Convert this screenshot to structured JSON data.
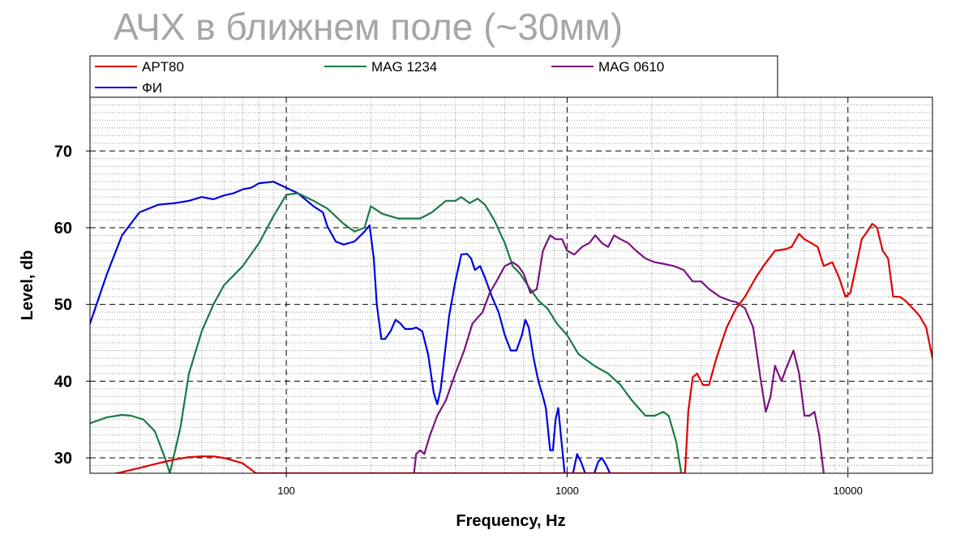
{
  "chart_data": {
    "type": "line",
    "title": "АЧХ в ближнем поле (~30мм)",
    "xlabel": "Frequency, Hz",
    "ylabel": "Level, db",
    "x_scale": "log",
    "xlim": [
      20,
      20000
    ],
    "ylim": [
      28,
      77
    ],
    "x_ticks": [
      100,
      1000,
      10000
    ],
    "x_tick_labels": [
      "100",
      "1000",
      "10000"
    ],
    "y_ticks": [
      30,
      40,
      50,
      60,
      70
    ],
    "y_tick_labels": [
      "30",
      "40",
      "50",
      "60",
      "70"
    ],
    "grid": true,
    "legend_position": "top",
    "series": [
      {
        "name": "ФИ",
        "color": "#0000e0",
        "points": [
          [
            20,
            47.5
          ],
          [
            23,
            54
          ],
          [
            26,
            59
          ],
          [
            30,
            62
          ],
          [
            35,
            63
          ],
          [
            40,
            63.2
          ],
          [
            45,
            63.5
          ],
          [
            50,
            64
          ],
          [
            55,
            63.7
          ],
          [
            60,
            64.2
          ],
          [
            65,
            64.5
          ],
          [
            70,
            65
          ],
          [
            75,
            65.2
          ],
          [
            80,
            65.8
          ],
          [
            90,
            66
          ],
          [
            100,
            65.2
          ],
          [
            110,
            64.5
          ],
          [
            125,
            62.8
          ],
          [
            135,
            62
          ],
          [
            140,
            60.2
          ],
          [
            150,
            58.2
          ],
          [
            160,
            57.8
          ],
          [
            175,
            58.2
          ],
          [
            190,
            59.5
          ],
          [
            198,
            60.3
          ],
          [
            205,
            56
          ],
          [
            210,
            50
          ],
          [
            218,
            45.5
          ],
          [
            225,
            45.5
          ],
          [
            235,
            46.5
          ],
          [
            245,
            48
          ],
          [
            255,
            47.5
          ],
          [
            265,
            46.8
          ],
          [
            280,
            46.8
          ],
          [
            290,
            47
          ],
          [
            305,
            46.5
          ],
          [
            320,
            43.5
          ],
          [
            335,
            38.5
          ],
          [
            345,
            37
          ],
          [
            355,
            39
          ],
          [
            380,
            48.5
          ],
          [
            400,
            53
          ],
          [
            420,
            56.5
          ],
          [
            440,
            56.6
          ],
          [
            455,
            56
          ],
          [
            470,
            54.5
          ],
          [
            490,
            55
          ],
          [
            510,
            53.5
          ],
          [
            540,
            51
          ],
          [
            570,
            49
          ],
          [
            600,
            46
          ],
          [
            630,
            44
          ],
          [
            660,
            44
          ],
          [
            690,
            46
          ],
          [
            710,
            48
          ],
          [
            730,
            47
          ],
          [
            760,
            43
          ],
          [
            790,
            40
          ],
          [
            820,
            38
          ],
          [
            840,
            36.5
          ],
          [
            870,
            31
          ],
          [
            890,
            31
          ],
          [
            910,
            35
          ],
          [
            930,
            36.5
          ],
          [
            950,
            33
          ],
          [
            980,
            28
          ],
          [
            1050,
            28
          ],
          [
            1085,
            30.5
          ],
          [
            1120,
            29.5
          ],
          [
            1160,
            28
          ],
          [
            1250,
            28
          ],
          [
            1290,
            29.5
          ],
          [
            1330,
            30
          ],
          [
            1380,
            29
          ],
          [
            1420,
            28
          ]
        ]
      },
      {
        "name": "MAG 1234",
        "color": "#1a7a46",
        "points": [
          [
            20,
            34.5
          ],
          [
            23,
            35.3
          ],
          [
            26,
            35.6
          ],
          [
            28,
            35.5
          ],
          [
            31,
            35
          ],
          [
            34,
            33.5
          ],
          [
            37,
            30
          ],
          [
            38.5,
            28
          ],
          [
            42,
            34
          ],
          [
            45,
            41
          ],
          [
            50,
            46.5
          ],
          [
            55,
            50
          ],
          [
            60,
            52.5
          ],
          [
            70,
            55
          ],
          [
            80,
            58
          ],
          [
            90,
            61.5
          ],
          [
            100,
            64.3
          ],
          [
            110,
            64.5
          ],
          [
            125,
            63.5
          ],
          [
            140,
            62.5
          ],
          [
            160,
            60.5
          ],
          [
            175,
            59.5
          ],
          [
            190,
            60
          ],
          [
            200,
            62.8
          ],
          [
            220,
            61.8
          ],
          [
            250,
            61.2
          ],
          [
            275,
            61.2
          ],
          [
            300,
            61.2
          ],
          [
            330,
            62
          ],
          [
            370,
            63.5
          ],
          [
            400,
            63.5
          ],
          [
            420,
            64
          ],
          [
            450,
            63.2
          ],
          [
            480,
            63.8
          ],
          [
            510,
            63
          ],
          [
            550,
            61
          ],
          [
            600,
            58
          ],
          [
            640,
            55
          ],
          [
            680,
            54
          ],
          [
            730,
            52.3
          ],
          [
            790,
            50.5
          ],
          [
            850,
            49.5
          ],
          [
            920,
            47.5
          ],
          [
            1000,
            46
          ],
          [
            1100,
            43.5
          ],
          [
            1250,
            42
          ],
          [
            1400,
            41
          ],
          [
            1550,
            39.5
          ],
          [
            1700,
            37.5
          ],
          [
            1900,
            35.5
          ],
          [
            2050,
            35.5
          ],
          [
            2200,
            36
          ],
          [
            2300,
            35.5
          ],
          [
            2450,
            32
          ],
          [
            2550,
            28
          ]
        ]
      },
      {
        "name": "MAG 0610",
        "color": "#7a1480",
        "points": [
          [
            285,
            28
          ],
          [
            290,
            30.5
          ],
          [
            300,
            31
          ],
          [
            310,
            30.5
          ],
          [
            325,
            33
          ],
          [
            345,
            35.5
          ],
          [
            370,
            37.5
          ],
          [
            400,
            41
          ],
          [
            430,
            44
          ],
          [
            460,
            47.5
          ],
          [
            500,
            49
          ],
          [
            530,
            51.5
          ],
          [
            560,
            53
          ],
          [
            600,
            55
          ],
          [
            640,
            55.5
          ],
          [
            670,
            55
          ],
          [
            700,
            54
          ],
          [
            740,
            51.5
          ],
          [
            780,
            52
          ],
          [
            820,
            57
          ],
          [
            870,
            59
          ],
          [
            910,
            58.5
          ],
          [
            960,
            58.5
          ],
          [
            1000,
            57
          ],
          [
            1060,
            56.5
          ],
          [
            1130,
            57.5
          ],
          [
            1200,
            58
          ],
          [
            1260,
            59
          ],
          [
            1330,
            58
          ],
          [
            1400,
            57.5
          ],
          [
            1470,
            59
          ],
          [
            1550,
            58.5
          ],
          [
            1650,
            58
          ],
          [
            1760,
            57
          ],
          [
            1900,
            56
          ],
          [
            2050,
            55.5
          ],
          [
            2200,
            55.3
          ],
          [
            2400,
            55
          ],
          [
            2600,
            54.5
          ],
          [
            2800,
            53
          ],
          [
            3000,
            53
          ],
          [
            3200,
            52
          ],
          [
            3500,
            51
          ],
          [
            3800,
            50.5
          ],
          [
            4000,
            50.3
          ],
          [
            4300,
            49.5
          ],
          [
            4600,
            47
          ],
          [
            4900,
            40
          ],
          [
            5100,
            36
          ],
          [
            5300,
            38
          ],
          [
            5500,
            42
          ],
          [
            5800,
            40
          ],
          [
            6000,
            41.5
          ],
          [
            6400,
            44
          ],
          [
            6700,
            41
          ],
          [
            7000,
            35.5
          ],
          [
            7300,
            35.5
          ],
          [
            7600,
            36
          ],
          [
            7900,
            33
          ],
          [
            8200,
            28
          ]
        ]
      },
      {
        "name": "APT80",
        "color": "#e00000",
        "points": [
          [
            20,
            27.5
          ],
          [
            25,
            28
          ],
          [
            30,
            28.7
          ],
          [
            35,
            29.3
          ],
          [
            40,
            29.8
          ],
          [
            45,
            30.1
          ],
          [
            50,
            30.2
          ],
          [
            55,
            30.2
          ],
          [
            60,
            30
          ],
          [
            70,
            29.3
          ],
          [
            78,
            28
          ],
          [
            2630,
            28
          ],
          [
            2700,
            36
          ],
          [
            2800,
            40.5
          ],
          [
            2900,
            41
          ],
          [
            3050,
            39.5
          ],
          [
            3200,
            39.5
          ],
          [
            3400,
            43
          ],
          [
            3700,
            47
          ],
          [
            4000,
            49.5
          ],
          [
            4300,
            51
          ],
          [
            4700,
            53.5
          ],
          [
            5000,
            55
          ],
          [
            5500,
            57
          ],
          [
            6000,
            57.2
          ],
          [
            6300,
            57.5
          ],
          [
            6700,
            59.2
          ],
          [
            7000,
            58.5
          ],
          [
            7400,
            58
          ],
          [
            7800,
            57.5
          ],
          [
            8200,
            55
          ],
          [
            8800,
            55.5
          ],
          [
            9300,
            53.5
          ],
          [
            9800,
            51
          ],
          [
            10200,
            51.5
          ],
          [
            10700,
            55
          ],
          [
            11200,
            58.5
          ],
          [
            11700,
            59.5
          ],
          [
            12200,
            60.5
          ],
          [
            12700,
            60
          ],
          [
            13300,
            57
          ],
          [
            13900,
            56
          ],
          [
            14500,
            51
          ],
          [
            15300,
            51
          ],
          [
            16000,
            50.5
          ],
          [
            17000,
            49.5
          ],
          [
            18000,
            48.5
          ],
          [
            19000,
            47
          ],
          [
            20000,
            43
          ]
        ]
      }
    ]
  }
}
